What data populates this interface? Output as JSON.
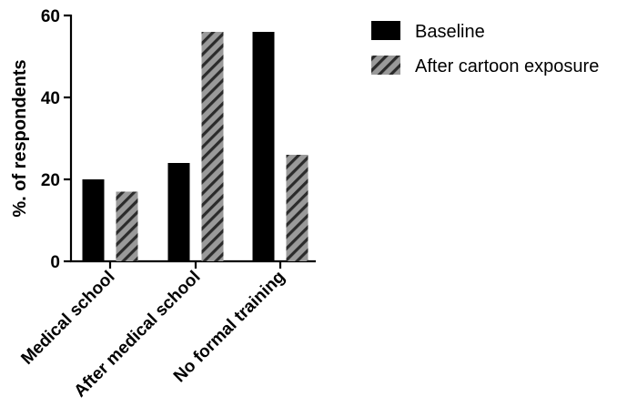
{
  "chart_data": {
    "type": "bar",
    "categories": [
      "Medical school",
      "After medical school",
      "No formal training"
    ],
    "series": [
      {
        "name": "Baseline",
        "values": [
          20,
          24,
          56
        ],
        "color": "#000000",
        "pattern": "solid"
      },
      {
        "name": "After cartoon exposure",
        "values": [
          17,
          56,
          26
        ],
        "color": "#9a9a9a",
        "pattern": "hatched"
      }
    ],
    "ylabel": "%. of respondents",
    "xlabel": "",
    "ylim": [
      0,
      60
    ],
    "yticks": [
      0,
      20,
      40,
      60
    ],
    "grid": false,
    "legend_position": "top-right"
  }
}
